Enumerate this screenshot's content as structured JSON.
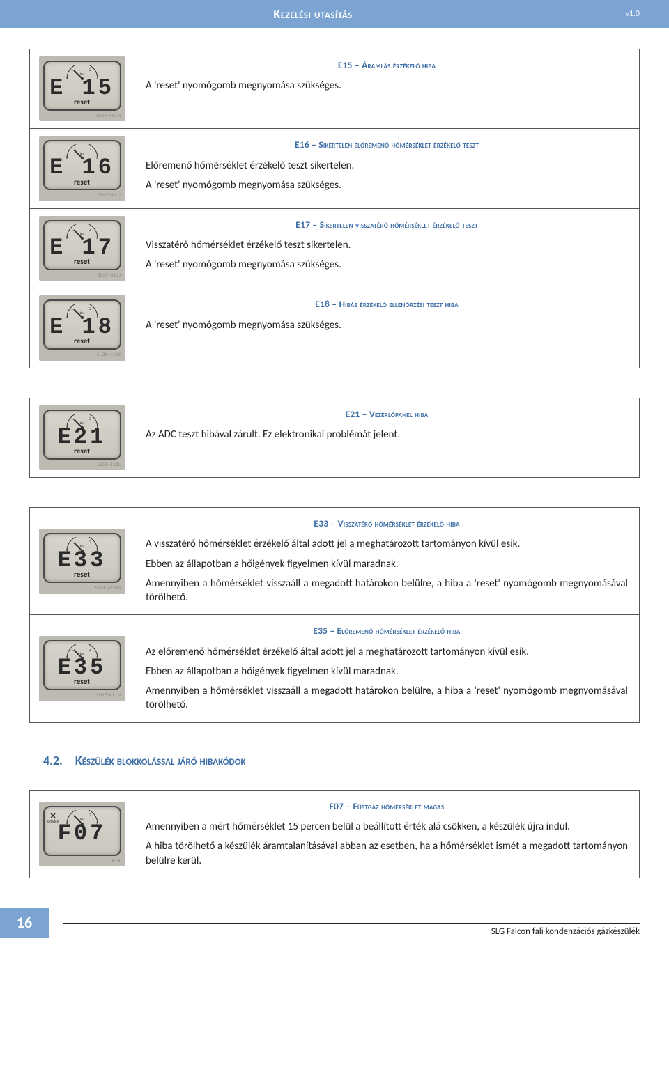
{
  "brand_blue": "#7ba4d3",
  "text_blue": "#3d6ea6",
  "header": {
    "title": "Kezelési utasítás",
    "version": "v1.0"
  },
  "gauge": {
    "labels": [
      "0",
      "1",
      "2",
      "3"
    ],
    "unit": "bar"
  },
  "lcd": {
    "reset": "reset",
    "service_x": "✕",
    "service_lbl": "service"
  },
  "errors_block1": [
    {
      "code": "E 15",
      "imgcode": "SLGF-411H",
      "title": "E15 – Áramlás érzékelő hiba",
      "body": [
        "A 'reset' nyomógomb megnyomása szükséges."
      ]
    },
    {
      "code": "E 16",
      "imgcode": "SLGF-411I",
      "title": "E16 – Sikertelen előremenő hőmérséklet érzékelő teszt",
      "body": [
        "Előremenő hőmérséklet érzékelő teszt sikertelen.",
        "A 'reset' nyomógomb megnyomása szükséges."
      ]
    },
    {
      "code": "E 17",
      "imgcode": "SLGF-411J",
      "title": "E17 – Sikertelen visszatérő hőmérséklet érzékelő teszt",
      "body": [
        "Visszatérő hőmérséklet érzékelő teszt sikertelen.",
        "A 'reset' nyomógomb megnyomása szükséges."
      ]
    },
    {
      "code": "E 18",
      "imgcode": "SLGF-411K",
      "title": "E18 – Hibás érzékelő ellenőrzési teszt hiba",
      "body": [
        "A 'reset' nyomógomb megnyomása szükséges."
      ]
    }
  ],
  "errors_block2": [
    {
      "code": "E21",
      "imgcode": "SLGF-411L",
      "title": "E21 – Vezérlőpanel hiba",
      "body": [
        "Az ADC teszt hibával zárult. Ez elektronikai problémát jelent."
      ]
    }
  ],
  "errors_block3": [
    {
      "code": "E33",
      "imgcode": "SLGF-411M",
      "title": "E33 – Visszatérő hőmérséklet érzékelő hiba",
      "body": [
        "A visszatérő hőmérséklet érzékelő által adott jel a meghatározott tartományon kívül esik.",
        "Ebben az állapotban a hőigények figyelmen kívül maradnak.",
        "Amennyiben a hőmérséklet visszaáll a megadott határokon belülre, a hiba a 'reset' nyomógomb megnyomásával törölhető."
      ]
    },
    {
      "code": "E35",
      "imgcode": "SLGF-411N",
      "title": "E35 – Előremenő hőmérséklet érzékelő hiba",
      "body": [
        "Az előremenő hőmérséklet érzékelő által adott jel a meghatározott tartományon kívül esik.",
        "Ebben az állapotban a hőigények figyelmen kívül maradnak.",
        "Amennyiben a hőmérséklet visszaáll a megadott határokon belülre, a hiba a 'reset' nyomógomb megnyomásával törölhető."
      ]
    }
  ],
  "section42": {
    "num": "4.2.",
    "title": "Készülék blokkolással járó hibakódok"
  },
  "errors_block4": [
    {
      "code": "F07",
      "imgcode": "HEK",
      "service": true,
      "title": "F07 – Füstgáz hőmérséklet magas",
      "body": [
        "Amennyiben a mért hőmérséklet 15 percen belül a beállított érték alá csökken, a készülék újra indul.",
        "A hiba törölhető a készülék áramtalanításával abban az esetben, ha a hőmérséklet ismét a megadott tartományon belülre kerül."
      ]
    }
  ],
  "footer": {
    "page": "16",
    "text": "SLG Falcon fali kondenzációs gázkészülék"
  }
}
